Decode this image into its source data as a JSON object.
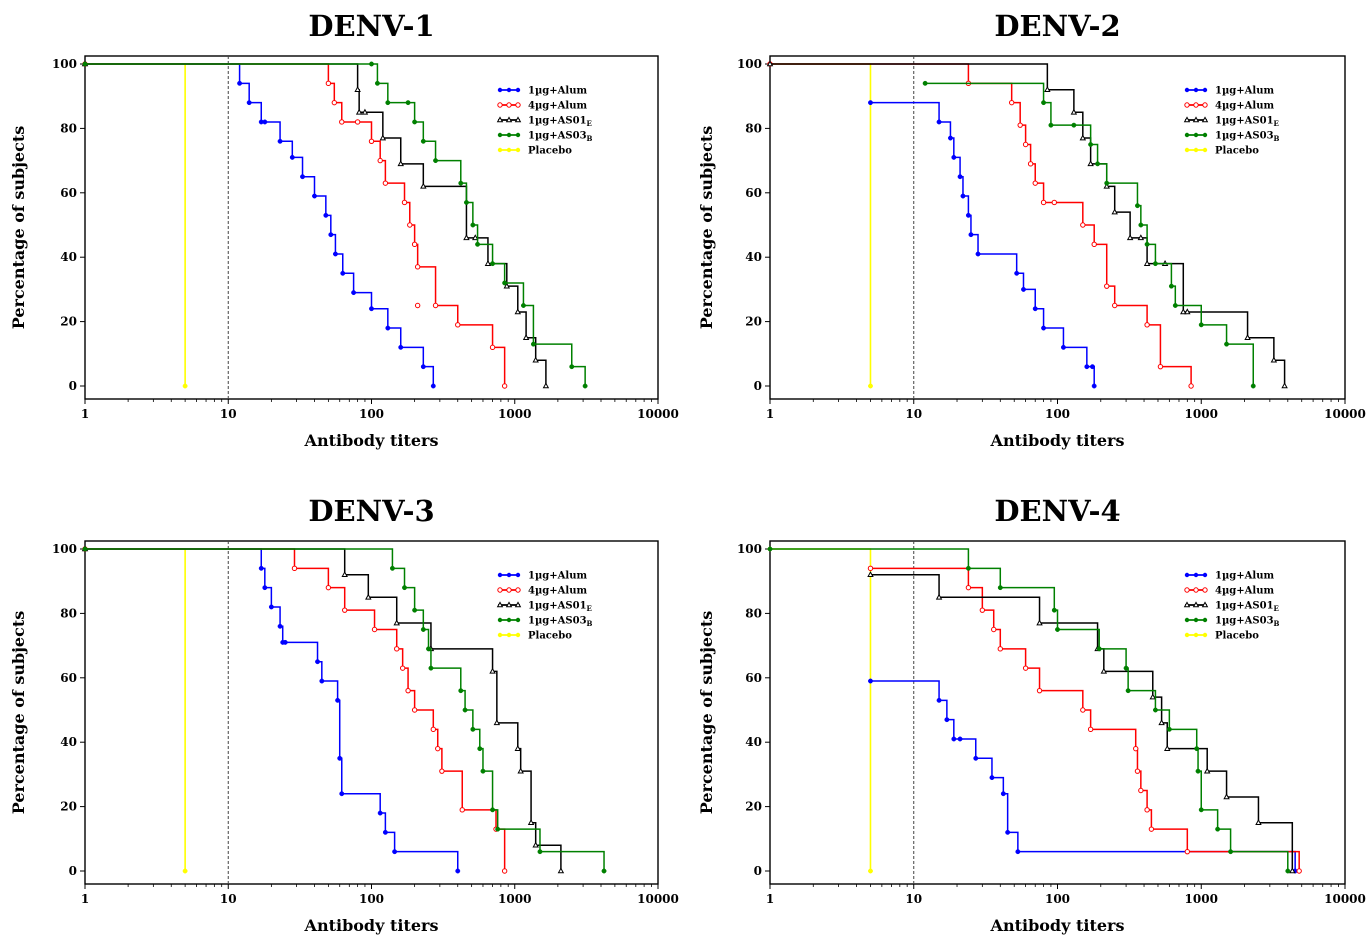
{
  "chart_data": [
    {
      "type": "line",
      "title": "DENV-1",
      "xlabel": "Antibody titers",
      "ylabel": "Percentage of subjects",
      "x_scale": "log",
      "xlim": [
        1,
        10000
      ],
      "ylim": [
        0,
        100
      ],
      "x_ticks": [
        "1",
        "10",
        "100",
        "1000",
        "10000"
      ],
      "y_ticks": [
        "0",
        "20",
        "40",
        "60",
        "80",
        "100"
      ],
      "reference_line_x": 10,
      "legend_position": "top-right",
      "series": [
        {
          "name": "1µg+Alum",
          "color": "#0000ff",
          "marker": "filled",
          "x": [
            1,
            12,
            14,
            17,
            18,
            23,
            28,
            33,
            40,
            48,
            52,
            56,
            63,
            75,
            100,
            130,
            160,
            230,
            270
          ],
          "y": [
            100,
            94,
            88,
            82,
            82,
            76,
            71,
            65,
            59,
            53,
            47,
            41,
            35,
            29,
            24,
            18,
            12,
            6,
            0
          ]
        },
        {
          "name": "4µg+Alum",
          "color": "#ff0000",
          "marker": "open",
          "x": [
            1,
            50,
            55,
            62,
            80,
            100,
            115,
            125,
            170,
            185,
            200,
            210,
            280,
            400,
            700,
            850
          ],
          "y": [
            100,
            94,
            88,
            82,
            82,
            76,
            70,
            63,
            57,
            50,
            44,
            37,
            25,
            19,
            12,
            0
          ],
          "extra_points": [
            [
              210,
              25
            ]
          ]
        },
        {
          "name": "1µg+AS01E",
          "name_sub": "E",
          "color": "#000000",
          "marker": "open-triangle",
          "x": [
            1,
            80,
            82,
            90,
            120,
            160,
            230,
            460,
            530,
            650,
            880,
            1050,
            1200,
            1400,
            1650
          ],
          "y": [
            100,
            92,
            85,
            85,
            77,
            69,
            62,
            46,
            46,
            38,
            31,
            23,
            15,
            8,
            0
          ]
        },
        {
          "name": "1µg+AS03B",
          "name_sub": "B",
          "color": "#008000",
          "marker": "filled",
          "x": [
            1,
            100,
            110,
            130,
            180,
            200,
            230,
            280,
            420,
            460,
            510,
            550,
            700,
            850,
            1150,
            1350,
            2500,
            3100
          ],
          "y": [
            100,
            100,
            94,
            88,
            88,
            82,
            76,
            70,
            63,
            57,
            50,
            44,
            38,
            32,
            25,
            13,
            6,
            0
          ]
        },
        {
          "name": "Placebo",
          "color": "#ffff00",
          "marker": "filled",
          "x": [
            1,
            5
          ],
          "y": [
            100,
            0
          ]
        }
      ]
    },
    {
      "type": "line",
      "title": "DENV-2",
      "xlabel": "Antibody titers",
      "ylabel": "Percentage of subjects",
      "x_scale": "log",
      "xlim": [
        1,
        10000
      ],
      "ylim": [
        0,
        100
      ],
      "x_ticks": [
        "1",
        "10",
        "100",
        "1000",
        "10000"
      ],
      "y_ticks": [
        "0",
        "20",
        "40",
        "60",
        "80",
        "100"
      ],
      "reference_line_x": 10,
      "legend_position": "top-right",
      "series": [
        {
          "name": "1µg+Alum",
          "color": "#0000ff",
          "marker": "filled",
          "x": [
            5,
            15,
            18,
            19,
            21,
            22,
            24,
            25,
            28,
            52,
            58,
            70,
            80,
            110,
            160,
            175,
            180
          ],
          "y": [
            88,
            82,
            77,
            71,
            65,
            59,
            53,
            47,
            41,
            35,
            30,
            24,
            18,
            12,
            6,
            6,
            0
          ]
        },
        {
          "name": "4µg+Alum",
          "color": "#ff0000",
          "marker": "open",
          "x": [
            1,
            24,
            48,
            55,
            60,
            65,
            70,
            80,
            95,
            150,
            180,
            220,
            250,
            420,
            520,
            850
          ],
          "y": [
            100,
            94,
            88,
            81,
            75,
            69,
            63,
            57,
            57,
            50,
            44,
            31,
            25,
            19,
            6,
            0
          ]
        },
        {
          "name": "1µg+AS01E",
          "name_sub": "E",
          "color": "#000000",
          "marker": "open-triangle",
          "x": [
            1,
            85,
            130,
            150,
            170,
            220,
            250,
            320,
            380,
            420,
            560,
            750,
            800,
            2100,
            3200,
            3800
          ],
          "y": [
            100,
            92,
            85,
            77,
            69,
            62,
            54,
            46,
            46,
            38,
            38,
            23,
            23,
            15,
            8,
            0
          ]
        },
        {
          "name": "1µg+AS03B",
          "name_sub": "B",
          "color": "#008000",
          "marker": "filled",
          "x": [
            12,
            80,
            90,
            130,
            170,
            190,
            220,
            360,
            380,
            420,
            480,
            620,
            660,
            1000,
            1500,
            2300
          ],
          "y": [
            94,
            88,
            81,
            81,
            75,
            69,
            63,
            56,
            50,
            44,
            38,
            31,
            25,
            19,
            13,
            0
          ]
        },
        {
          "name": "Placebo",
          "color": "#ffff00",
          "marker": "filled",
          "x": [
            1,
            5
          ],
          "y": [
            100,
            0
          ]
        }
      ]
    },
    {
      "type": "line",
      "title": "DENV-3",
      "xlabel": "Antibody titers",
      "ylabel": "Percentage of subjects",
      "x_scale": "log",
      "xlim": [
        1,
        10000
      ],
      "ylim": [
        0,
        100
      ],
      "x_ticks": [
        "1",
        "10",
        "100",
        "1000",
        "10000"
      ],
      "y_ticks": [
        "0",
        "20",
        "40",
        "60",
        "80",
        "100"
      ],
      "reference_line_x": 10,
      "legend_position": "top-right",
      "series": [
        {
          "name": "1µg+Alum",
          "color": "#0000ff",
          "marker": "filled",
          "x": [
            1,
            17,
            18,
            20,
            23,
            24,
            25,
            42,
            45,
            58,
            60,
            62,
            115,
            125,
            145,
            400
          ],
          "y": [
            100,
            94,
            88,
            82,
            76,
            71,
            71,
            65,
            59,
            53,
            35,
            24,
            18,
            12,
            6,
            0
          ]
        },
        {
          "name": "4µg+Alum",
          "color": "#ff0000",
          "marker": "open",
          "x": [
            1,
            29,
            50,
            65,
            105,
            150,
            165,
            180,
            200,
            270,
            290,
            310,
            430,
            740,
            850
          ],
          "y": [
            100,
            94,
            88,
            81,
            75,
            69,
            63,
            56,
            50,
            44,
            38,
            31,
            19,
            13,
            0
          ]
        },
        {
          "name": "1µg+AS01E",
          "name_sub": "E",
          "color": "#000000",
          "marker": "open-triangle",
          "x": [
            1,
            65,
            95,
            150,
            260,
            700,
            750,
            1050,
            1100,
            1300,
            1400,
            2100
          ],
          "y": [
            100,
            92,
            85,
            77,
            69,
            62,
            46,
            38,
            31,
            15,
            8,
            0
          ]
        },
        {
          "name": "1µg+AS03B",
          "name_sub": "B",
          "color": "#008000",
          "marker": "filled",
          "x": [
            1,
            140,
            170,
            200,
            230,
            250,
            260,
            420,
            450,
            510,
            570,
            600,
            700,
            760,
            1500,
            4200
          ],
          "y": [
            100,
            94,
            88,
            81,
            75,
            69,
            63,
            56,
            50,
            44,
            38,
            31,
            19,
            13,
            6,
            0
          ]
        },
        {
          "name": "Placebo",
          "color": "#ffff00",
          "marker": "filled",
          "x": [
            1,
            5
          ],
          "y": [
            100,
            0
          ]
        }
      ]
    },
    {
      "type": "line",
      "title": "DENV-4",
      "xlabel": "Antibody titers",
      "ylabel": "Percentage of subjects",
      "x_scale": "log",
      "xlim": [
        1,
        10000
      ],
      "ylim": [
        0,
        100
      ],
      "x_ticks": [
        "1",
        "10",
        "100",
        "1000",
        "10000"
      ],
      "y_ticks": [
        "0",
        "20",
        "40",
        "60",
        "80",
        "100"
      ],
      "reference_line_x": 10,
      "legend_position": "top-right",
      "series": [
        {
          "name": "1µg+Alum",
          "color": "#0000ff",
          "marker": "filled",
          "x": [
            5,
            15,
            17,
            19,
            21,
            27,
            35,
            42,
            45,
            53,
            4500
          ],
          "y": [
            59,
            53,
            47,
            41,
            41,
            35,
            29,
            24,
            12,
            6,
            0
          ]
        },
        {
          "name": "4µg+Alum",
          "color": "#ff0000",
          "marker": "open",
          "x": [
            5,
            24,
            30,
            36,
            40,
            60,
            75,
            150,
            170,
            350,
            360,
            380,
            420,
            450,
            800,
            4800
          ],
          "y": [
            94,
            88,
            81,
            75,
            69,
            63,
            56,
            50,
            44,
            38,
            31,
            25,
            19,
            13,
            6,
            0
          ]
        },
        {
          "name": "1µg+AS01E",
          "name_sub": "E",
          "color": "#000000",
          "marker": "open-triangle",
          "x": [
            5,
            15,
            75,
            190,
            210,
            460,
            530,
            580,
            1100,
            1500,
            2500,
            4300
          ],
          "y": [
            92,
            85,
            77,
            69,
            62,
            54,
            46,
            38,
            31,
            23,
            15,
            0
          ]
        },
        {
          "name": "1µg+AS03B",
          "name_sub": "B",
          "color": "#008000",
          "marker": "filled",
          "x": [
            1,
            24,
            40,
            95,
            100,
            195,
            300,
            310,
            480,
            600,
            930,
            950,
            1000,
            1300,
            1600,
            4000
          ],
          "y": [
            100,
            94,
            88,
            81,
            75,
            69,
            63,
            56,
            50,
            44,
            38,
            31,
            19,
            13,
            6,
            0
          ]
        },
        {
          "name": "Placebo",
          "color": "#ffff00",
          "marker": "filled",
          "x": [
            1,
            5
          ],
          "y": [
            100,
            0
          ]
        }
      ]
    }
  ]
}
